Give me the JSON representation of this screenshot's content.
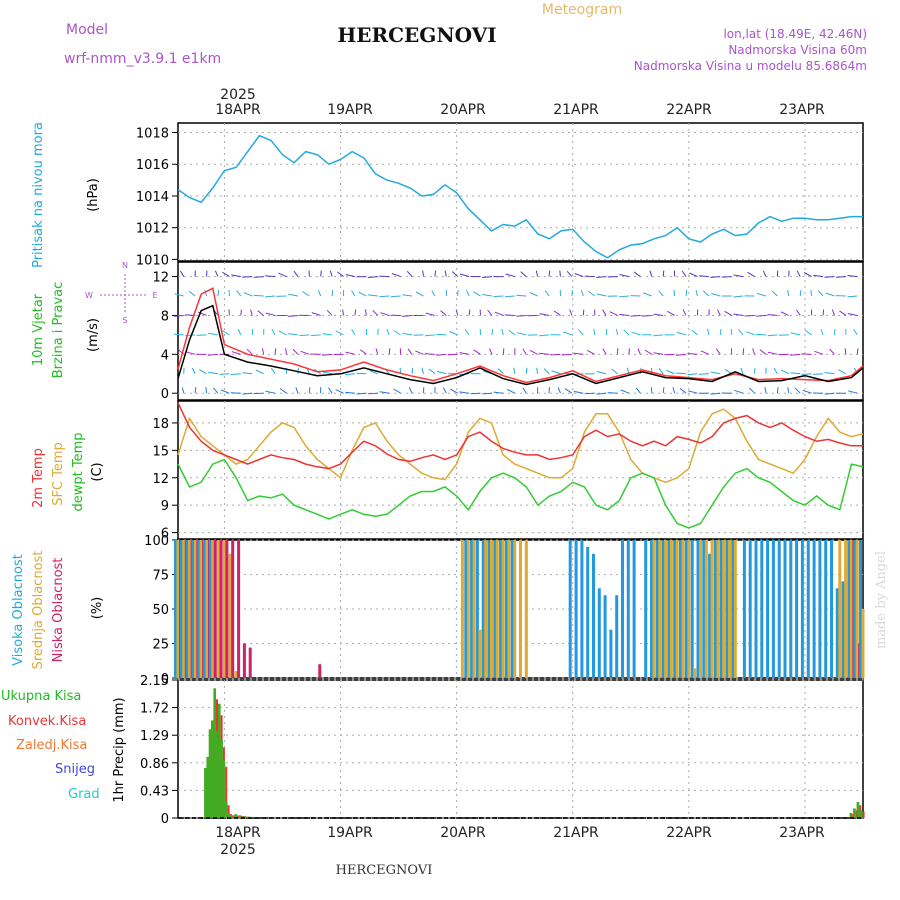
{
  "header": {
    "model_label": "Model",
    "model_name": "wrf-nmm_v3.9.1  e1km",
    "title": "HERCEGNOVI",
    "meteogram": "Meteogram",
    "lonlat": "lon,lat (18.49E, 42.46N)",
    "elevation": "Nadmorska Visina 60m",
    "model_elevation": "Nadmorska Visina u modelu 85.6864m"
  },
  "footer": {
    "station": "HERCEGNOVI",
    "credit": "made by Angel"
  },
  "colors": {
    "pressure": "#22aadd",
    "wind_speed": "#000000",
    "wind_gust": "#ff3333",
    "temp2m": "#ee3333",
    "sfc_temp": "#ddaa33",
    "dewpt": "#33cc33",
    "high_cloud": "#2299dd",
    "mid_cloud": "#ddaa33",
    "low_cloud": "#cc2266",
    "total_rain": "#44aa22",
    "conv_rain": "#ee3333",
    "snow": "#4444dd",
    "grad": "#22cccc",
    "grid": "#aaaaaa"
  },
  "chart_data": [
    {
      "id": "axis_time",
      "type": "line",
      "year": "2025",
      "x_labels": [
        "18APR",
        "19APR",
        "20APR",
        "21APR",
        "22APR",
        "23APR"
      ],
      "x_range_days": [
        17.6,
        23.5
      ]
    },
    {
      "id": "pressure",
      "type": "line",
      "ylabel": "Pritisak na nivou mora",
      "unit": "(hPa)",
      "yticks": [
        "1010",
        "1012",
        "1014",
        "1016",
        "1018"
      ],
      "ylim": [
        1009.9,
        1018.6
      ],
      "x": [
        17.6,
        17.7,
        17.8,
        17.9,
        18.0,
        18.1,
        18.2,
        18.3,
        18.4,
        18.5,
        18.6,
        18.7,
        18.8,
        18.9,
        19.0,
        19.1,
        19.2,
        19.3,
        19.4,
        19.5,
        19.6,
        19.7,
        19.8,
        19.9,
        20.0,
        20.1,
        20.2,
        20.3,
        20.4,
        20.5,
        20.6,
        20.7,
        20.8,
        20.9,
        21.0,
        21.1,
        21.2,
        21.3,
        21.4,
        21.5,
        21.6,
        21.7,
        21.8,
        21.9,
        22.0,
        22.1,
        22.2,
        22.3,
        22.4,
        22.5,
        22.6,
        22.7,
        22.8,
        22.9,
        23.0,
        23.1,
        23.2,
        23.3,
        23.4,
        23.5
      ],
      "values": [
        1014.4,
        1013.9,
        1013.6,
        1014.5,
        1015.6,
        1015.8,
        1016.8,
        1017.8,
        1017.5,
        1016.6,
        1016.1,
        1016.8,
        1016.6,
        1016.0,
        1016.3,
        1016.8,
        1016.4,
        1015.4,
        1015.0,
        1014.8,
        1014.5,
        1014.0,
        1014.1,
        1014.7,
        1014.2,
        1013.2,
        1012.5,
        1011.8,
        1012.2,
        1012.1,
        1012.5,
        1011.6,
        1011.3,
        1011.8,
        1011.9,
        1011.1,
        1010.5,
        1010.1,
        1010.6,
        1010.9,
        1011.0,
        1011.3,
        1011.5,
        1012.0,
        1011.3,
        1011.1,
        1011.6,
        1011.9,
        1011.5,
        1011.6,
        1012.3,
        1012.7,
        1012.4,
        1012.6,
        1012.6,
        1012.5,
        1012.5,
        1012.6,
        1012.7,
        1012.7
      ]
    },
    {
      "id": "wind",
      "type": "line",
      "ylabel_1": "10m  Vjetar",
      "ylabel_2": "Brzina i Pravac",
      "unit": "(m/s)",
      "compass": [
        "N",
        "E",
        "S",
        "W"
      ],
      "yticks": [
        "0",
        "4",
        "8",
        "12"
      ],
      "ylim": [
        -0.7,
        13.5
      ],
      "barb_levels": [
        0,
        2,
        4,
        6,
        8,
        10,
        12
      ],
      "x": [
        17.6,
        17.7,
        17.8,
        17.9,
        18.0,
        18.2,
        18.4,
        18.6,
        18.8,
        19.0,
        19.2,
        19.4,
        19.6,
        19.8,
        20.0,
        20.2,
        20.4,
        20.6,
        20.8,
        21.0,
        21.2,
        21.4,
        21.6,
        21.8,
        22.0,
        22.2,
        22.4,
        22.6,
        22.8,
        23.0,
        23.2,
        23.4,
        23.5
      ],
      "series": [
        {
          "values": [
            1.5,
            5.5,
            8.5,
            9.0,
            4.0,
            3.2,
            2.8,
            2.3,
            1.8,
            2.0,
            2.6,
            2.0,
            1.4,
            1.0,
            1.6,
            2.6,
            1.5,
            0.9,
            1.4,
            2.0,
            1.0,
            1.6,
            2.2,
            1.6,
            1.5,
            1.2,
            2.2,
            1.2,
            1.3,
            1.8,
            1.2,
            1.6,
            2.6
          ]
        },
        {
          "values": [
            2.5,
            6.8,
            10.2,
            10.8,
            5.0,
            4.0,
            3.5,
            3.0,
            2.2,
            2.4,
            3.2,
            2.4,
            1.8,
            1.3,
            2.0,
            2.8,
            1.8,
            1.1,
            1.6,
            2.3,
            1.2,
            1.8,
            2.4,
            1.8,
            1.6,
            1.4,
            2.0,
            1.4,
            1.5,
            1.4,
            1.3,
            1.8,
            2.8
          ]
        }
      ]
    },
    {
      "id": "temperature",
      "type": "line",
      "ylabel_1": "2m Temp",
      "ylabel_2": "SFC Temp",
      "ylabel_3": "dewpt Temp",
      "unit": "(C)",
      "yticks": [
        "6",
        "9",
        "12",
        "15",
        "18"
      ],
      "ylim": [
        5.3,
        20.4
      ],
      "x": [
        17.6,
        17.7,
        17.8,
        17.9,
        18.0,
        18.1,
        18.2,
        18.3,
        18.4,
        18.5,
        18.6,
        18.7,
        18.8,
        18.9,
        19.0,
        19.1,
        19.2,
        19.3,
        19.4,
        19.5,
        19.6,
        19.7,
        19.8,
        19.9,
        20.0,
        20.1,
        20.2,
        20.3,
        20.4,
        20.5,
        20.6,
        20.7,
        20.8,
        20.9,
        21.0,
        21.1,
        21.2,
        21.3,
        21.4,
        21.5,
        21.6,
        21.7,
        21.8,
        21.9,
        22.0,
        22.1,
        22.2,
        22.3,
        22.4,
        22.5,
        22.6,
        22.7,
        22.8,
        22.9,
        23.0,
        23.1,
        23.2,
        23.3,
        23.4,
        23.5
      ],
      "series": [
        {
          "values": [
            20.2,
            17.5,
            16.0,
            15.0,
            14.5,
            14.0,
            13.5,
            14.0,
            14.5,
            14.2,
            14.0,
            13.5,
            13.2,
            13.0,
            13.5,
            14.8,
            16.0,
            15.5,
            14.6,
            14.0,
            13.8,
            14.2,
            14.5,
            14.0,
            14.5,
            16.5,
            17.0,
            16.0,
            15.2,
            14.8,
            14.5,
            14.5,
            14.0,
            14.2,
            14.5,
            16.5,
            17.2,
            16.5,
            16.8,
            16.0,
            15.5,
            16.0,
            15.5,
            16.5,
            16.2,
            15.8,
            16.5,
            18.0,
            18.5,
            18.8,
            18.0,
            17.5,
            18.0,
            17.2,
            16.5,
            16.0,
            16.2,
            15.8,
            15.5,
            15.5
          ]
        },
        {
          "values": [
            14.5,
            18.5,
            16.5,
            15.5,
            14.5,
            13.5,
            14.0,
            15.5,
            17.0,
            18.0,
            17.5,
            15.5,
            14.0,
            13.0,
            12.0,
            15.0,
            17.5,
            18.0,
            16.0,
            14.5,
            13.5,
            12.5,
            12.0,
            11.8,
            13.5,
            17.0,
            18.5,
            18.0,
            14.5,
            13.5,
            13.0,
            12.5,
            12.0,
            12.0,
            13.0,
            17.0,
            19.0,
            19.0,
            17.0,
            14.0,
            12.5,
            12.0,
            11.5,
            12.0,
            13.0,
            17.0,
            19.0,
            19.5,
            18.5,
            16.0,
            14.0,
            13.5,
            13.0,
            12.5,
            14.0,
            16.5,
            18.5,
            17.0,
            16.5,
            16.8
          ]
        },
        {
          "values": [
            13.5,
            11.0,
            11.5,
            13.5,
            14.0,
            12.0,
            9.5,
            10.0,
            9.8,
            10.2,
            9.0,
            8.5,
            8.0,
            7.5,
            8.0,
            8.5,
            8.0,
            7.8,
            8.0,
            9.0,
            10.0,
            10.5,
            10.5,
            11.0,
            10.0,
            8.5,
            10.5,
            12.0,
            12.5,
            12.0,
            11.0,
            9.0,
            10.0,
            10.5,
            11.5,
            11.0,
            9.0,
            8.5,
            9.5,
            12.0,
            12.5,
            12.0,
            9.0,
            7.0,
            6.5,
            7.0,
            9.0,
            11.0,
            12.5,
            13.0,
            12.0,
            11.5,
            10.5,
            9.5,
            9.0,
            10.0,
            9.0,
            8.5,
            13.5,
            13.2
          ]
        }
      ]
    },
    {
      "id": "cloud",
      "type": "bar",
      "ylabel_1": "Visoka Oblacnost",
      "ylabel_2": "Srednja Oblacnost",
      "ylabel_3": "Niska Oblacnost",
      "unit": "(%)",
      "yticks": [
        "0",
        "25",
        "50",
        "75",
        "100"
      ],
      "ylim": [
        0,
        100
      ],
      "x": [
        17.6,
        17.65,
        17.7,
        17.75,
        17.8,
        17.85,
        17.9,
        17.95,
        18.0,
        18.05,
        18.1,
        18.15,
        18.2,
        18.25,
        18.3,
        18.8,
        19.0,
        20.05,
        20.1,
        20.15,
        20.2,
        20.25,
        20.3,
        20.35,
        20.4,
        20.45,
        20.5,
        20.55,
        20.6,
        21.0,
        21.05,
        21.1,
        21.15,
        21.2,
        21.25,
        21.3,
        21.35,
        21.4,
        21.45,
        21.5,
        21.55,
        21.65,
        21.7,
        21.75,
        21.8,
        21.85,
        21.9,
        21.95,
        22.0,
        22.05,
        22.1,
        22.15,
        22.2,
        22.25,
        22.3,
        22.35,
        22.4,
        22.5,
        22.55,
        22.6,
        22.65,
        22.7,
        22.75,
        22.8,
        22.85,
        22.9,
        22.95,
        23.0,
        23.05,
        23.1,
        23.15,
        23.2,
        23.25,
        23.3,
        23.35,
        23.4,
        23.45,
        23.5
      ],
      "series": [
        {
          "values": [
            100,
            100,
            100,
            100,
            100,
            100,
            100,
            0,
            0,
            0,
            0,
            0,
            0,
            0,
            0,
            0,
            0,
            0,
            100,
            100,
            100,
            100,
            100,
            100,
            100,
            100,
            100,
            0,
            0,
            100,
            100,
            100,
            95,
            90,
            65,
            60,
            35,
            60,
            100,
            100,
            100,
            100,
            100,
            100,
            100,
            100,
            100,
            100,
            100,
            100,
            100,
            100,
            90,
            100,
            100,
            100,
            100,
            100,
            100,
            100,
            100,
            100,
            100,
            100,
            100,
            100,
            100,
            100,
            100,
            100,
            100,
            100,
            100,
            65,
            70,
            100,
            100,
            100
          ]
        },
        {
          "values": [
            100,
            100,
            100,
            100,
            100,
            100,
            100,
            100,
            100,
            90,
            5,
            0,
            0,
            0,
            0,
            0,
            0,
            100,
            100,
            100,
            35,
            100,
            100,
            100,
            100,
            100,
            100,
            100,
            100,
            0,
            0,
            0,
            0,
            0,
            0,
            0,
            0,
            0,
            0,
            0,
            0,
            0,
            100,
            100,
            100,
            100,
            100,
            100,
            100,
            7,
            100,
            100,
            100,
            100,
            100,
            100,
            100,
            0,
            0,
            0,
            0,
            0,
            0,
            0,
            0,
            0,
            0,
            0,
            0,
            0,
            0,
            0,
            0,
            100,
            100,
            100,
            100,
            50
          ]
        },
        {
          "values": [
            100,
            100,
            100,
            100,
            100,
            100,
            100,
            100,
            100,
            100,
            100,
            25,
            22,
            0,
            0,
            10,
            0,
            0,
            0,
            0,
            0,
            0,
            0,
            0,
            0,
            0,
            0,
            0,
            0,
            0,
            0,
            0,
            0,
            0,
            0,
            0,
            0,
            0,
            0,
            0,
            0,
            0,
            0,
            0,
            0,
            0,
            0,
            0,
            0,
            0,
            0,
            0,
            0,
            0,
            0,
            0,
            0,
            0,
            0,
            0,
            0,
            0,
            0,
            0,
            0,
            0,
            0,
            0,
            0,
            0,
            0,
            0,
            0,
            0,
            0,
            100,
            25,
            0
          ]
        }
      ]
    },
    {
      "id": "precip",
      "type": "bar",
      "labels": [
        "Ukupna Kisa",
        "Konvek.Kisa",
        "Zaledj.Kisa",
        "Snijeg",
        "Grad"
      ],
      "ylabel": "1hr Precip (mm)",
      "yticks": [
        "0",
        "0.43",
        "0.86",
        "1.29",
        "1.72",
        "2.15"
      ],
      "ylim": [
        0,
        2.15
      ],
      "x": [
        17.84,
        17.86,
        17.88,
        17.9,
        17.92,
        17.94,
        17.96,
        17.98,
        18.0,
        18.02,
        18.04,
        18.06,
        18.1,
        18.14,
        18.18,
        18.22,
        23.4,
        23.43,
        23.46,
        23.49
      ],
      "series": [
        {
          "values": [
            0.78,
            0.95,
            1.38,
            1.52,
            2.02,
            1.35,
            1.78,
            1.22,
            0.9,
            0.25,
            0.08,
            0.05,
            0.06,
            0.04,
            0.03,
            0.02,
            0.08,
            0.15,
            0.25,
            0.12
          ]
        },
        {
          "values": [
            0.7,
            0.85,
            1.2,
            1.4,
            1.85,
            1.2,
            1.6,
            1.1,
            0.8,
            0.2,
            0.06,
            0.04,
            0.04,
            0.03,
            0.02,
            0.01,
            0.06,
            0.12,
            0.2,
            0.1
          ]
        }
      ]
    }
  ]
}
